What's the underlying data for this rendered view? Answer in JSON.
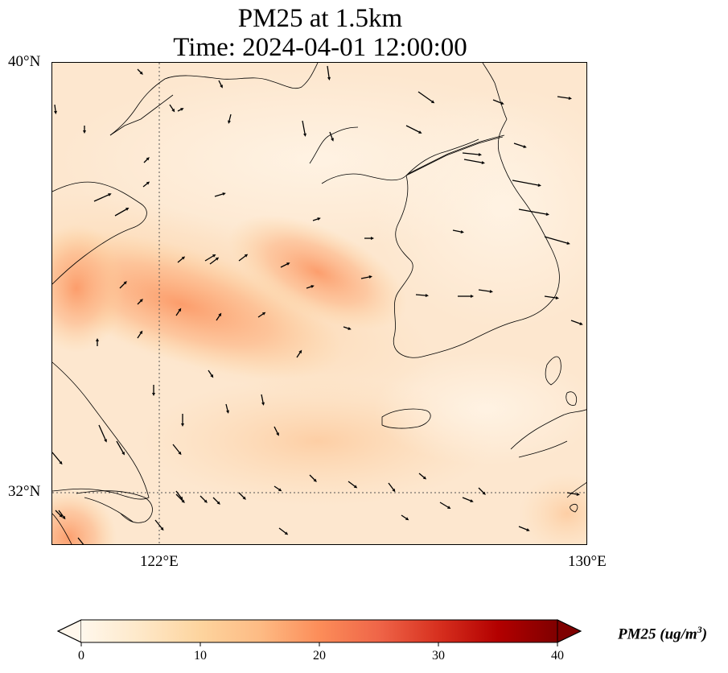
{
  "title": {
    "line1": "PM25 at 1.5km",
    "line2": "Time: 2024-04-01 12:00:00"
  },
  "axes": {
    "lat_labels": [
      "40°N",
      "32°N"
    ],
    "lon_labels": [
      "122°E",
      "130°E"
    ],
    "lon_range": [
      120,
      130
    ],
    "lat_range": [
      31,
      40
    ]
  },
  "colorbar": {
    "label_main": "PM25 (ug/m",
    "label_sup": "3",
    "label_close": ")",
    "ticks": [
      "0",
      "10",
      "20",
      "30",
      "40"
    ],
    "range": [
      0,
      40
    ],
    "colormap": "OrRd",
    "extend": "both"
  },
  "colors": {
    "low": "#fff7ec",
    "mid": "#fdd49e",
    "high": "#fc8d59",
    "max": "#7f0000"
  }
}
